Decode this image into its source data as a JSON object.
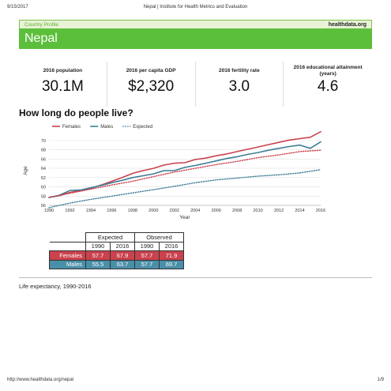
{
  "print_header": {
    "date": "9/15/2017",
    "title": "Nepal | Institute for Health Metrics and Evaluation"
  },
  "band": {
    "left": "Country Profile",
    "right": "healthdata.org"
  },
  "country": "Nepal",
  "stats": [
    {
      "label": "2016 population",
      "value": "30.1M"
    },
    {
      "label": "2016 per capita GDP",
      "value": "$2,320"
    },
    {
      "label": "2016 fertility rate",
      "value": "3.0"
    },
    {
      "label": "2016 educational attainment (years)",
      "value": "4.6"
    }
  ],
  "section_title": "How long do people live?",
  "colors": {
    "females": "#c9424e",
    "males": "#3e7d96",
    "expected_f": "#c9424e",
    "expected_m": "#3e7d96",
    "green": "#5cbf3c"
  },
  "chart_data": {
    "type": "line",
    "xlabel": "Year",
    "ylabel": "Age",
    "xlim": [
      1990,
      2016
    ],
    "ylim": [
      56,
      71
    ],
    "yticks": [
      56,
      58,
      60,
      62,
      64,
      66,
      68,
      70
    ],
    "xticks": [
      1990,
      1992,
      1994,
      1996,
      1998,
      2000,
      2002,
      2004,
      2006,
      2008,
      2010,
      2012,
      2014,
      2016
    ],
    "legend": {
      "position": "top-left",
      "labels": [
        "Females",
        "Males",
        "Expected"
      ]
    },
    "series": [
      {
        "name": "Females",
        "style": "solid",
        "color": "#c9424e",
        "x": [
          1990,
          1991,
          1992,
          1993,
          1994,
          1995,
          1996,
          1997,
          1998,
          1999,
          2000,
          2001,
          2002,
          2003,
          2004,
          2005,
          2006,
          2007,
          2008,
          2009,
          2010,
          2011,
          2012,
          2013,
          2014,
          2015,
          2016
        ],
        "y": [
          57.7,
          58.1,
          58.8,
          59.2,
          59.7,
          60.4,
          61.2,
          62.0,
          62.9,
          63.5,
          64.0,
          64.7,
          65.1,
          65.2,
          65.9,
          66.2,
          66.7,
          67.1,
          67.6,
          68.1,
          68.6,
          69.1,
          69.6,
          70.1,
          70.4,
          70.7,
          71.9
        ]
      },
      {
        "name": "Males",
        "style": "solid",
        "color": "#3e7d96",
        "x": [
          1990,
          1991,
          1992,
          1993,
          1994,
          1995,
          1996,
          1997,
          1998,
          1999,
          2000,
          2001,
          2002,
          2003,
          2004,
          2005,
          2006,
          2007,
          2008,
          2009,
          2010,
          2011,
          2012,
          2013,
          2014,
          2015,
          2016
        ],
        "y": [
          57.7,
          58.2,
          59.2,
          59.3,
          59.8,
          60.3,
          60.9,
          61.4,
          62.0,
          62.4,
          62.8,
          63.5,
          63.5,
          64.2,
          64.6,
          65.1,
          65.6,
          66.1,
          66.5,
          67.0,
          67.4,
          67.9,
          68.3,
          68.7,
          69.0,
          68.3,
          69.7
        ]
      },
      {
        "name": "Expected",
        "style": "dotted",
        "color": "#c9424e",
        "x": [
          1990,
          1992,
          1994,
          1996,
          1998,
          2000,
          2002,
          2004,
          2006,
          2008,
          2010,
          2012,
          2014,
          2016
        ],
        "y": [
          57.7,
          58.6,
          59.5,
          60.4,
          61.2,
          62.2,
          63.2,
          64.0,
          64.8,
          65.5,
          66.3,
          66.9,
          67.6,
          67.9
        ]
      },
      {
        "name": "Expected",
        "style": "dotted",
        "color": "#3e7d96",
        "x": [
          1990,
          1992,
          1994,
          1996,
          1998,
          2000,
          2002,
          2004,
          2006,
          2008,
          2010,
          2012,
          2014,
          2016
        ],
        "y": [
          55.5,
          56.5,
          57.3,
          58.0,
          58.7,
          59.4,
          60.1,
          60.9,
          61.5,
          61.9,
          62.3,
          62.6,
          63.0,
          63.7
        ]
      }
    ]
  },
  "table": {
    "group_headers": [
      "Expected",
      "Observed"
    ],
    "year_headers": [
      "1990",
      "2016",
      "1990",
      "2016"
    ],
    "rows": [
      {
        "label": "Females",
        "values": [
          "57.7",
          "67.9",
          "57.7",
          "71.9"
        ]
      },
      {
        "label": "Males",
        "values": [
          "55.5",
          "63.7",
          "57.7",
          "69.7"
        ]
      }
    ]
  },
  "caption": "Life expectancy, 1990-2016",
  "print_footer": {
    "url": "http://www.healthdata.org/nepal",
    "page": "1/9"
  }
}
